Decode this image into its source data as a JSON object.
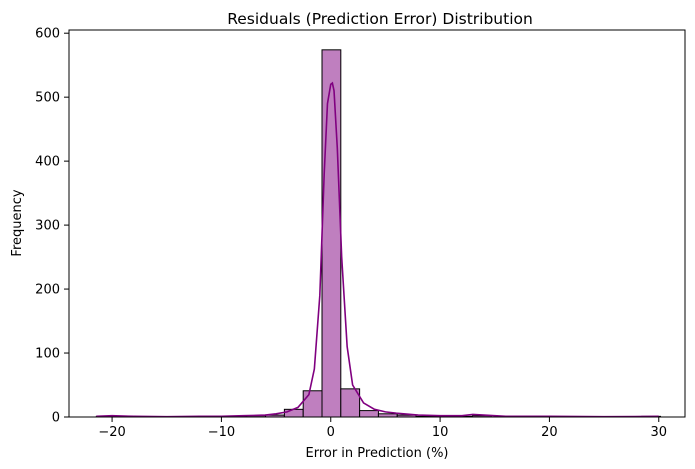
{
  "chart_data": {
    "type": "bar",
    "title": "Residuals (Prediction Error) Distribution",
    "xlabel": "Error in Prediction (%)",
    "ylabel": "Frequency",
    "xlim": [
      -23.94,
      32.4
    ],
    "ylim": [
      0,
      605
    ],
    "x_ticks": [
      -20,
      -10,
      0,
      10,
      20,
      30
    ],
    "y_ticks": [
      0,
      100,
      200,
      300,
      400,
      500,
      600
    ],
    "bin_width": 1.72,
    "bins_left": [
      -21.44,
      -19.72,
      -18.0,
      -16.28,
      -14.56,
      -12.84,
      -11.12,
      -9.4,
      -7.68,
      -5.96,
      -4.24,
      -2.52,
      -0.8,
      0.92,
      2.64,
      4.36,
      6.08,
      7.8,
      9.52,
      11.24,
      12.96,
      14.68,
      16.4,
      18.12,
      19.84,
      21.56,
      23.28,
      25.0,
      26.72,
      28.44
    ],
    "counts": [
      1,
      1,
      0,
      0,
      0,
      0,
      1,
      1,
      2,
      3,
      12,
      41,
      574,
      44,
      10,
      5,
      3,
      1,
      1,
      1,
      2,
      0,
      0,
      1,
      0,
      0,
      0,
      0,
      0,
      1
    ],
    "kde": {
      "x": [
        -21.44,
        -20.0,
        -18.0,
        -15.0,
        -12.0,
        -10.0,
        -8.0,
        -6.0,
        -5.0,
        -4.0,
        -3.0,
        -2.0,
        -1.5,
        -1.0,
        -0.6,
        -0.3,
        0.0,
        0.15,
        0.3,
        0.6,
        1.0,
        1.5,
        2.0,
        3.0,
        4.0,
        5.0,
        6.0,
        8.0,
        10.0,
        12.0,
        13.0,
        14.0,
        16.0,
        18.0,
        20.0,
        25.0,
        30.0
      ],
      "y": [
        1,
        2,
        1,
        0.5,
        1,
        1,
        2,
        3,
        5,
        8,
        15,
        35,
        75,
        190,
        380,
        490,
        520,
        522,
        510,
        420,
        250,
        110,
        50,
        22,
        12,
        8,
        6,
        3,
        2,
        2,
        4,
        3,
        1,
        1,
        1,
        0.5,
        1
      ]
    },
    "bar_fill": "#bf7fbf",
    "bar_edge": "#000000",
    "kde_color": "#800080",
    "grid": false
  }
}
